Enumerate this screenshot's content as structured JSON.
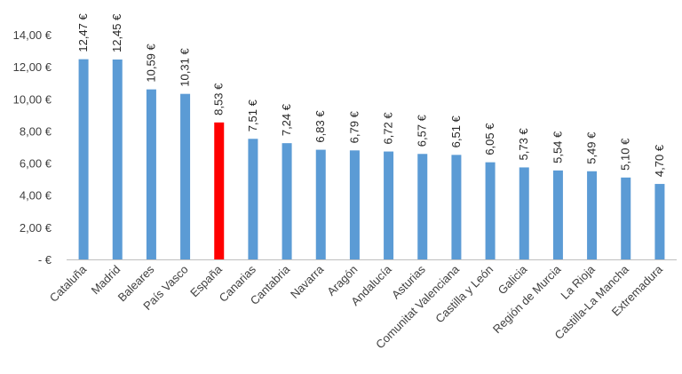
{
  "chart_data": {
    "type": "bar",
    "title": "",
    "xlabel": "",
    "ylabel": "",
    "ylim": [
      0,
      14
    ],
    "yticks": [
      0,
      2,
      4,
      6,
      8,
      10,
      12,
      14
    ],
    "ytick_labels": [
      "-  €",
      "2,00 €",
      "4,00 €",
      "6,00 €",
      "8,00 €",
      "10,00 €",
      "12,00 €",
      "14,00 €"
    ],
    "grid": false,
    "legend": "none",
    "categories": [
      "Cataluña",
      "Madrid",
      "Baleares",
      "País Vasco",
      "España",
      "Canarias",
      "Cantabria",
      "Navarra",
      "Aragón",
      "Andalucía",
      "Asturias",
      "Comunitat Valenciana",
      "Castilla y León",
      "Galicia",
      "Región de Murcia",
      "La Rioja",
      "Castilla-La Mancha",
      "Extremadura"
    ],
    "values": [
      12.47,
      12.45,
      10.59,
      10.31,
      8.53,
      7.51,
      7.24,
      6.83,
      6.79,
      6.72,
      6.57,
      6.51,
      6.05,
      5.73,
      5.54,
      5.49,
      5.1,
      4.7
    ],
    "data_labels": [
      "12,47 €",
      "12,45 €",
      "10,59 €",
      "10,31 €",
      "8,53 €",
      "7,51 €",
      "7,24 €",
      "6,83 €",
      "6,79 €",
      "6,72 €",
      "6,57 €",
      "6,51 €",
      "6,05 €",
      "5,73 €",
      "5,54 €",
      "5,49 €",
      "5,10 €",
      "4,70 €"
    ],
    "colors": {
      "default": "#5b9bd5",
      "highlight": "#ff0000"
    },
    "highlight_category": "España"
  }
}
